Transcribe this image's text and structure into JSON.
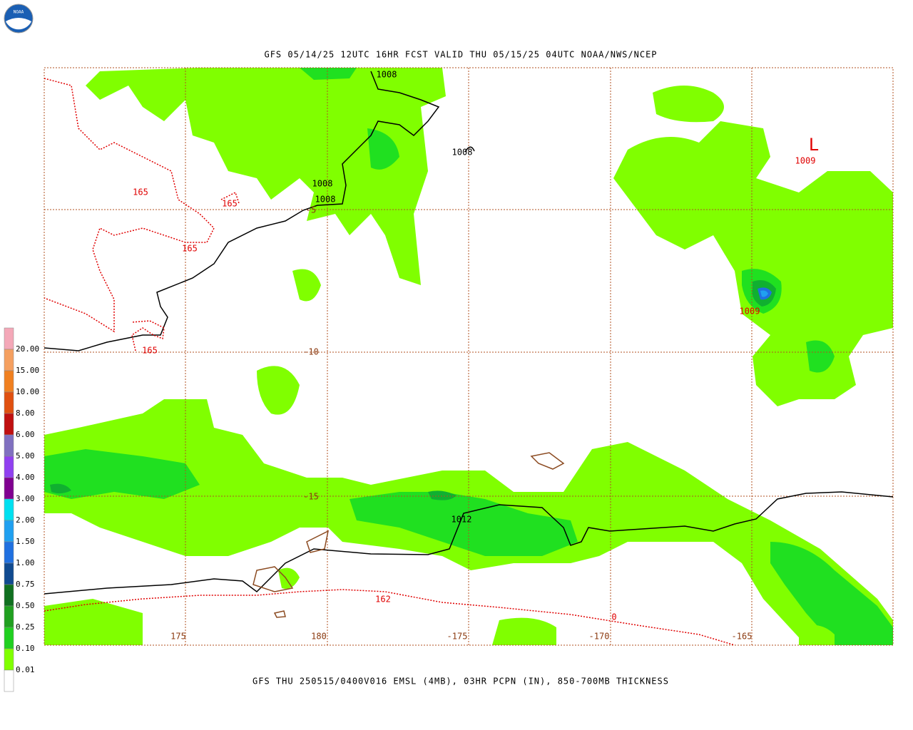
{
  "header": {
    "title": "GFS 05/14/25 12UTC 16HR FCST VALID THU 05/15/25 04UTC NOAA/NWS/NCEP"
  },
  "footer": {
    "caption": "GFS THU 250515/0400V016 EMSL (4MB), 03HR PCPN (IN), 850-700MB THICKNESS"
  },
  "logo": {
    "text": "NOAA"
  },
  "legend": {
    "labels": [
      "20.00",
      "15.00",
      "10.00",
      "8.00",
      "6.00",
      "5.00",
      "4.00",
      "3.00",
      "2.00",
      "1.50",
      "1.00",
      "0.75",
      "0.50",
      "0.25",
      "0.10",
      "0.01"
    ],
    "colors": [
      "#f4a8b8",
      "#f5a060",
      "#f08020",
      "#e05010",
      "#c01010",
      "#8070c0",
      "#9040f0",
      "#800090",
      "#00e0f0",
      "#20a0f0",
      "#2070e0",
      "#104a90",
      "#107020",
      "#20a020",
      "#20d020",
      "#80ff00",
      "#ffffff"
    ]
  },
  "map": {
    "lon_labels": [
      "175",
      "180",
      "-175",
      "-170",
      "-165"
    ],
    "lat_labels": [
      "-5",
      "-10",
      "-15"
    ],
    "pressure_labels": [
      "1008",
      "1008",
      "1008",
      "1008",
      "1009",
      "1009",
      "1012"
    ],
    "thickness_labels": [
      "165",
      "165",
      "165",
      "165",
      "162",
      "0"
    ],
    "low_marker": "L"
  }
}
